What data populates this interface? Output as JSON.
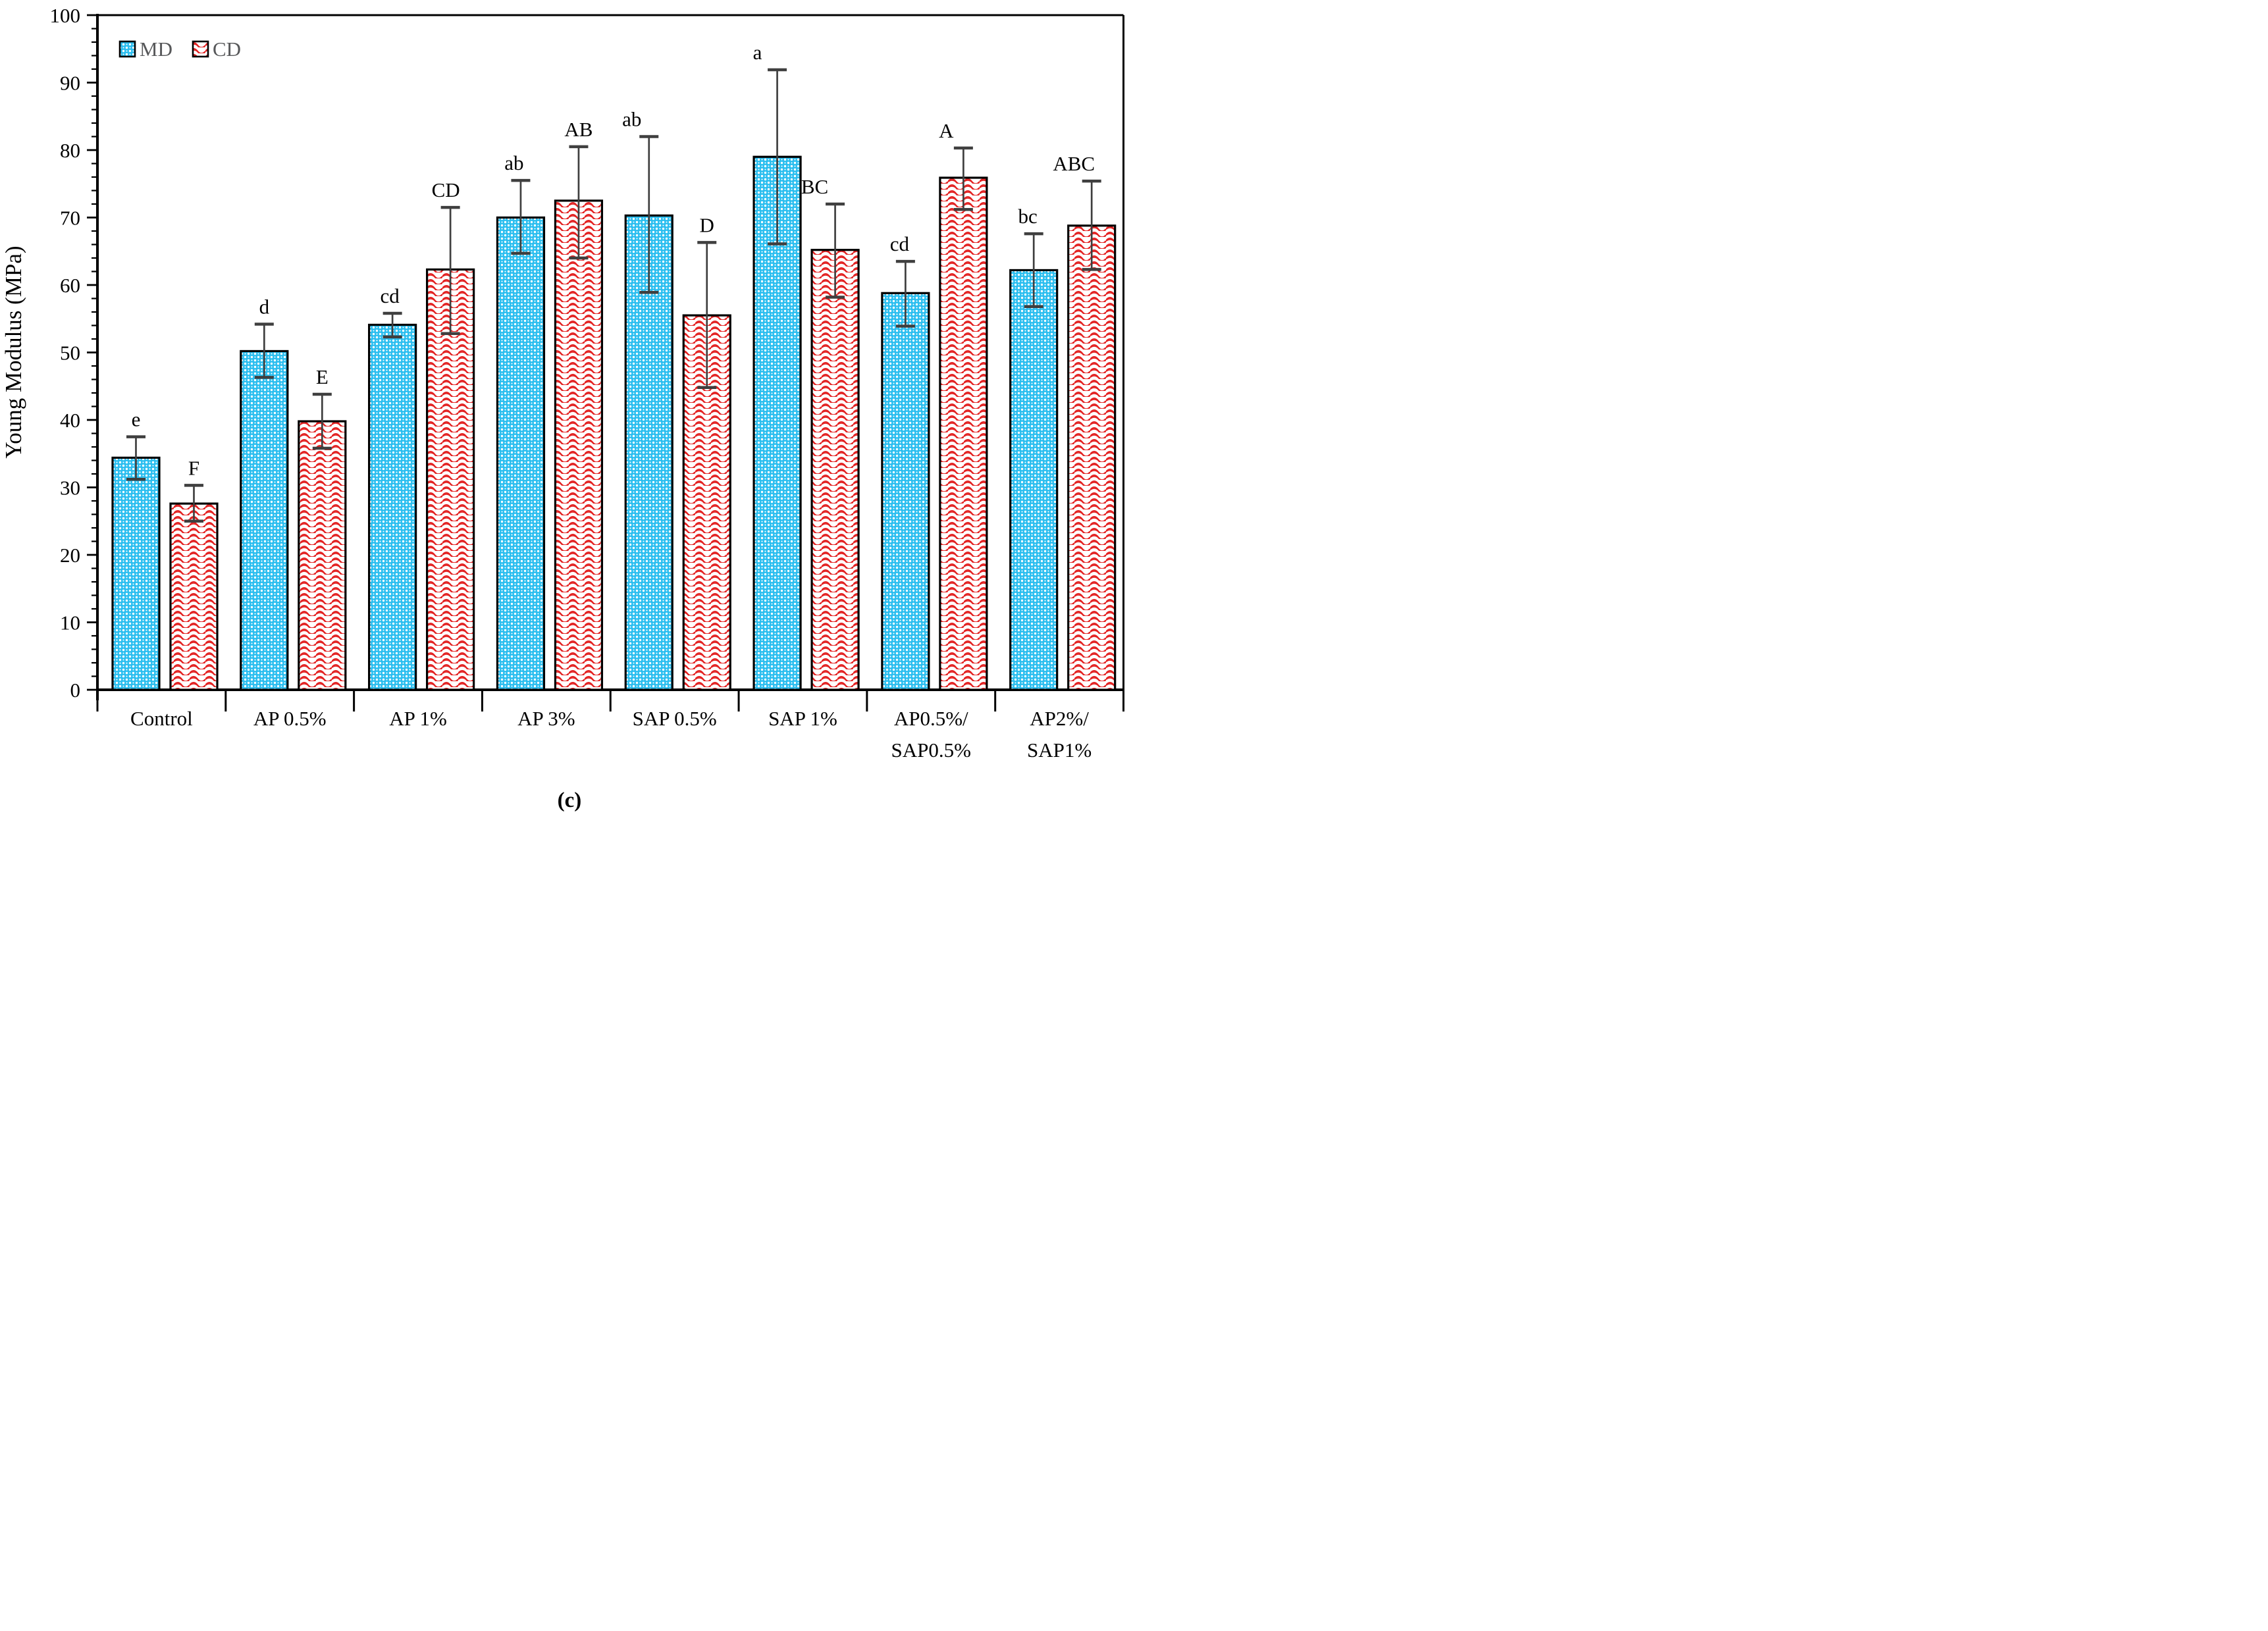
{
  "caption": "(c)",
  "legend": {
    "items": [
      {
        "label": "MD",
        "swatch": "md-dot-pattern-swatch"
      },
      {
        "label": "CD",
        "swatch": "cd-wave-pattern-swatch"
      }
    ],
    "text_color": "#57585A"
  },
  "colors": {
    "md_fill": "#2BBEEF",
    "md_dot": "#FFFFFF",
    "cd_wave": "#E32222",
    "cd_bg": "#FFFFFF",
    "bar_border": "#000000",
    "error_bar": "#3F3F3F",
    "axis": "#000000",
    "letter": "#000000"
  },
  "chart_data": {
    "type": "bar",
    "title": "",
    "xlabel": "",
    "ylabel": "Young Modulus (MPa)",
    "ylim": [
      0,
      100
    ],
    "ytick_major": 10,
    "ytick_minor": 2,
    "ytick_labels": [
      "0",
      "10",
      "20",
      "30",
      "40",
      "50",
      "60",
      "70",
      "80",
      "90",
      "100"
    ],
    "grid": false,
    "legend_position": "top-left-inside",
    "categories": [
      "Control",
      "AP 0.5%",
      "AP 1%",
      "AP 3%",
      "SAP 0.5%",
      "SAP 1%",
      "AP0.5%/SAP0.5%",
      "AP2%/SAP1%"
    ],
    "category_label_lines": [
      [
        "Control"
      ],
      [
        "AP 0.5%"
      ],
      [
        "AP 1%"
      ],
      [
        "AP 3%"
      ],
      [
        "SAP 0.5%"
      ],
      [
        "SAP 1%"
      ],
      [
        "AP0.5%/",
        "SAP0.5%"
      ],
      [
        "AP2%/",
        "SAP1%"
      ]
    ],
    "series": [
      {
        "name": "MD",
        "pattern": "dots",
        "values": [
          34.4,
          50.2,
          54.1,
          70.0,
          70.3,
          79.0,
          58.8,
          62.2
        ],
        "error_low": [
          31.2,
          46.3,
          52.3,
          64.7,
          58.9,
          66.1,
          53.9,
          56.8
        ],
        "error_high": [
          37.5,
          54.2,
          55.8,
          75.5,
          82.0,
          91.9,
          63.5,
          67.6
        ],
        "letters": [
          "e",
          "d",
          "cd",
          "ab",
          "ab",
          "a",
          "cd",
          "bc"
        ],
        "letter_dx": [
          0,
          0,
          -4,
          -10,
          -26,
          -30,
          -9,
          -9
        ]
      },
      {
        "name": "CD",
        "pattern": "waves",
        "values": [
          27.6,
          39.8,
          62.3,
          72.5,
          55.5,
          65.2,
          75.9,
          68.8
        ],
        "error_low": [
          25.0,
          35.8,
          52.8,
          64.0,
          44.8,
          58.2,
          71.2,
          62.3
        ],
        "error_high": [
          30.3,
          43.8,
          71.5,
          80.5,
          66.3,
          72.0,
          80.3,
          75.4
        ],
        "letters": [
          "F",
          "E",
          "CD",
          "AB",
          "D",
          "BC",
          "A",
          "ABC"
        ],
        "letter_dx": [
          0,
          0,
          -7,
          0,
          0,
          -31,
          -26,
          -27
        ]
      }
    ]
  }
}
